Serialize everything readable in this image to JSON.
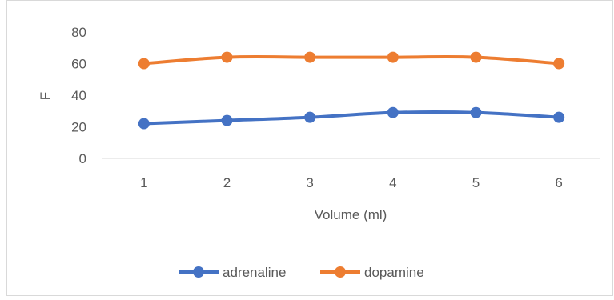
{
  "chart_data": {
    "type": "line",
    "title": "",
    "xlabel": "Volume (ml)",
    "ylabel": "F",
    "categories": [
      "1",
      "2",
      "3",
      "4",
      "5",
      "6"
    ],
    "ylim": [
      0,
      80
    ],
    "yticks": [
      "0",
      "20",
      "40",
      "60",
      "80"
    ],
    "grid": false,
    "legend_position": "bottom",
    "series": [
      {
        "name": "adrenaline",
        "color": "#4472C4",
        "values": [
          22,
          24,
          26,
          29,
          29,
          26
        ]
      },
      {
        "name": "dopamine",
        "color": "#ED7D31",
        "values": [
          60,
          64,
          64,
          64,
          64,
          60
        ]
      }
    ]
  }
}
